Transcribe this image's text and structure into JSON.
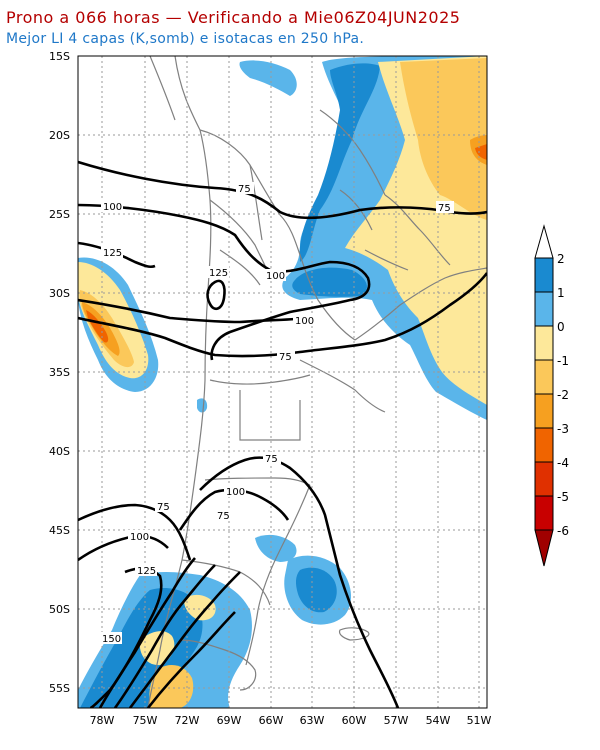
{
  "header": {
    "title": "Prono a 066 horas — Verificando a Mie06Z04JUN2025",
    "subtitle": "Mejor LI 4 capas (K,somb) e isotacas en 250 hPa."
  },
  "axes": {
    "lat_labels": [
      "15S",
      "20S",
      "25S",
      "30S",
      "35S",
      "40S",
      "45S",
      "50S",
      "55S"
    ],
    "lon_labels": [
      "78W",
      "75W",
      "72W",
      "69W",
      "66W",
      "63W",
      "60W",
      "57W",
      "54W",
      "51W"
    ]
  },
  "isotach_labels": [
    "75",
    "100",
    "125",
    "150"
  ],
  "colorbar": {
    "labels": [
      "2",
      "1",
      "0",
      "-1",
      "-2",
      "-3",
      "-4",
      "-5",
      "-6"
    ],
    "colors": [
      "#1a8ad0",
      "#5ab5ea",
      "#fde89a",
      "#fbc85a",
      "#f6a020",
      "#f06400",
      "#e03000",
      "#c80000",
      "#a00000"
    ]
  },
  "colors": {
    "title": "#b40000",
    "subtitle": "#1f78c8",
    "grid": "#9a9a9a",
    "border": "#808080",
    "isotach": "#000000"
  }
}
